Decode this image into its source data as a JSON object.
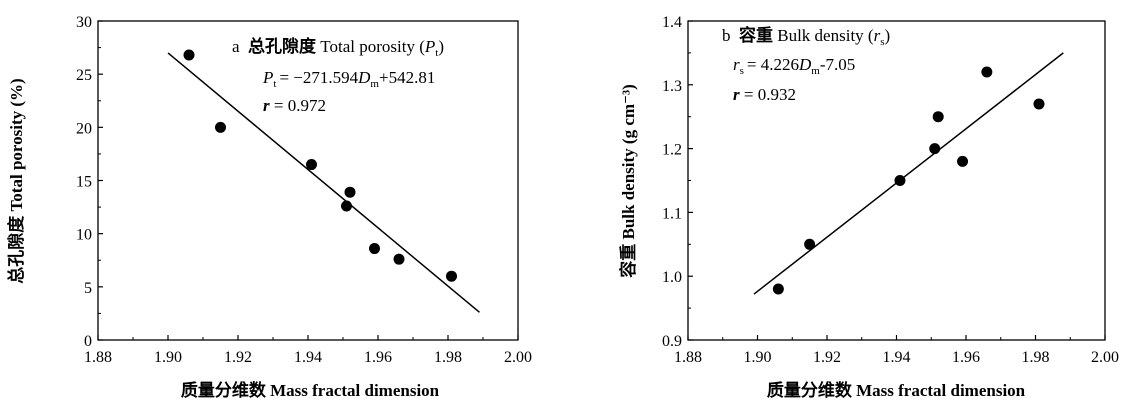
{
  "chart_data": [
    {
      "type": "scatter",
      "panel_label": "a",
      "title_cn": "总孔隙度",
      "title_en": "Total porosity",
      "title_sym": "P",
      "title_sub": "t",
      "eq": {
        "sym": "P",
        "sub": "t",
        "eq_text": "= −271.594",
        "dm_sym": "D",
        "dm_sub": "m",
        "tail": "+542.81"
      },
      "r_sym": "r",
      "r_text": "= 0.972",
      "ylabel": "总孔隙度 Total porosity (%)",
      "xlabel": "质量分维数 Mass fractal dimension",
      "xlim": [
        1.88,
        2.0
      ],
      "ylim": [
        0,
        30
      ],
      "xticks": [
        "1.88",
        "1.90",
        "1.92",
        "1.94",
        "1.96",
        "1.98",
        "2.00"
      ],
      "yticks": [
        "0",
        "5",
        "10",
        "15",
        "20",
        "25",
        "30"
      ],
      "points": [
        {
          "x": 1.906,
          "y": 26.8
        },
        {
          "x": 1.915,
          "y": 20.0
        },
        {
          "x": 1.941,
          "y": 16.5
        },
        {
          "x": 1.951,
          "y": 12.6
        },
        {
          "x": 1.952,
          "y": 13.9
        },
        {
          "x": 1.959,
          "y": 8.6
        },
        {
          "x": 1.966,
          "y": 7.6
        },
        {
          "x": 1.981,
          "y": 6.0
        }
      ],
      "fit": {
        "x": [
          1.9,
          1.989
        ],
        "y": [
          27.0,
          2.6
        ]
      }
    },
    {
      "type": "scatter",
      "panel_label": "b",
      "title_cn": "容重",
      "title_en": "Bulk density",
      "title_sym": "r",
      "title_sub": "s",
      "eq": {
        "sym": "r",
        "sub": "s",
        "eq_text": "= 4.226",
        "dm_sym": "D",
        "dm_sub": "m",
        "tail": "-7.05"
      },
      "r_sym": "r",
      "r_text": "= 0.932",
      "ylabel": "容重 Bulk density (g cm⁻³)",
      "xlabel": "质量分维数 Mass fractal dimension",
      "xlim": [
        1.88,
        2.0
      ],
      "ylim": [
        0.9,
        1.4
      ],
      "xticks": [
        "1.88",
        "1.90",
        "1.92",
        "1.94",
        "1.96",
        "1.98",
        "2.00"
      ],
      "yticks": [
        "0.9",
        "1.0",
        "1.1",
        "1.2",
        "1.3",
        "1.4"
      ],
      "points": [
        {
          "x": 1.906,
          "y": 0.98
        },
        {
          "x": 1.915,
          "y": 1.05
        },
        {
          "x": 1.941,
          "y": 1.15
        },
        {
          "x": 1.951,
          "y": 1.2
        },
        {
          "x": 1.952,
          "y": 1.25
        },
        {
          "x": 1.959,
          "y": 1.18
        },
        {
          "x": 1.966,
          "y": 1.32
        },
        {
          "x": 1.981,
          "y": 1.27
        }
      ],
      "fit": {
        "x": [
          1.899,
          1.988
        ],
        "y": [
          0.972,
          1.35
        ]
      }
    }
  ]
}
